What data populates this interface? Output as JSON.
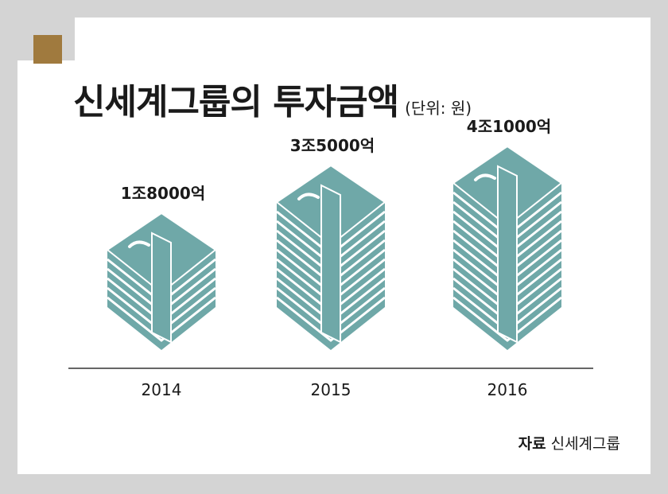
{
  "title": "신세계그룹의 투자금액",
  "unit": "(단위: 원)",
  "source": {
    "label": "자료",
    "text": "신세계그룹"
  },
  "colors": {
    "money": "#6fa8a8",
    "badge": "#a07a3e",
    "axis": "#333333",
    "text": "#1a1a1a"
  },
  "chart_data": {
    "type": "bar",
    "categories": [
      "2014",
      "2015",
      "2016"
    ],
    "values": [
      18000,
      35000,
      41000
    ],
    "value_unit": "억 원",
    "data_labels": [
      "1조8000억",
      "3조5000억",
      "4조1000억"
    ],
    "title": "신세계그룹의 투자금액",
    "subtitle": "(단위: 원)",
    "xlabel": "",
    "ylabel": "",
    "grid": false,
    "legend": "none"
  }
}
